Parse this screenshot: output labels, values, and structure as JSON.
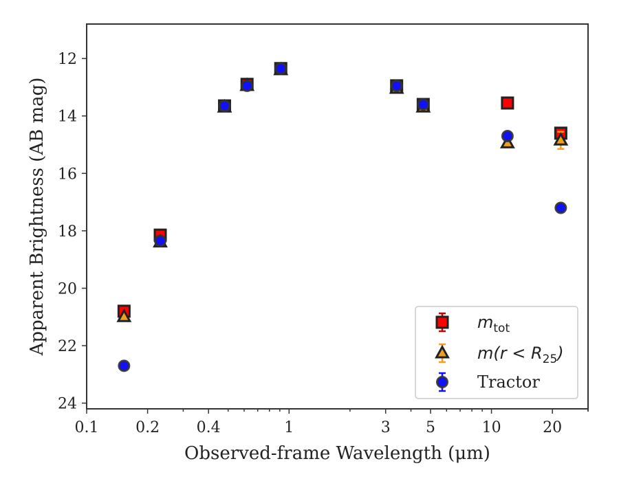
{
  "chart_data": {
    "type": "scatter",
    "xlabel": "Observed-frame Wavelength (μm)",
    "ylabel": "Apparent Brightness (AB mag)",
    "xscale": "log",
    "xlim": [
      0.1,
      30
    ],
    "ylim": [
      24.2,
      10.8
    ],
    "y_inverted": true,
    "x_ticks": [
      {
        "value": 0.1,
        "label": "0.1"
      },
      {
        "value": 0.2,
        "label": "0.2"
      },
      {
        "value": 0.4,
        "label": "0.4"
      },
      {
        "value": 1,
        "label": "1"
      },
      {
        "value": 3,
        "label": "3"
      },
      {
        "value": 5,
        "label": "5"
      },
      {
        "value": 10,
        "label": "10"
      },
      {
        "value": 20,
        "label": "20"
      }
    ],
    "y_ticks": [
      12,
      14,
      16,
      18,
      20,
      22,
      24
    ],
    "legend_position": "lower-right",
    "grid": false,
    "series": [
      {
        "name": "m_tot",
        "marker": "square",
        "color": "#ff0000",
        "edge": "#222222",
        "errorbar_color": "#cc0000",
        "x": [
          0.153,
          0.231,
          0.48,
          0.62,
          0.91,
          3.4,
          4.6,
          12.0,
          22.0
        ],
        "y": [
          20.8,
          18.15,
          13.65,
          12.9,
          12.35,
          12.95,
          13.6,
          13.55,
          14.6
        ]
      },
      {
        "name": "m(r < R25)",
        "marker": "triangle",
        "color": "#f0a020",
        "edge": "#222222",
        "errorbar_color": "#f0a020",
        "x": [
          0.153,
          0.231,
          0.48,
          0.62,
          0.91,
          3.4,
          4.6,
          12.0,
          22.0
        ],
        "y": [
          21.0,
          18.4,
          13.7,
          12.95,
          12.4,
          13.05,
          13.7,
          14.95,
          14.85
        ],
        "yerr": [
          0,
          0,
          0,
          0,
          0,
          0,
          0,
          0,
          0.3
        ]
      },
      {
        "name": "Tractor",
        "marker": "circle",
        "color": "#1010ff",
        "edge": "#333333",
        "errorbar_color": "#1010ff",
        "x": [
          0.153,
          0.231,
          0.48,
          0.62,
          0.91,
          3.4,
          4.6,
          12.0,
          22.0
        ],
        "y": [
          22.7,
          18.35,
          13.65,
          12.95,
          12.35,
          12.95,
          13.6,
          14.7,
          17.2
        ]
      }
    ]
  },
  "legend": {
    "items": [
      {
        "label_main": "m",
        "label_sub": "tot",
        "label_rest": ""
      },
      {
        "label_main": "m(r < R",
        "label_sub": "25",
        "label_rest": ")"
      },
      {
        "label_main": "Tractor",
        "label_sub": "",
        "label_rest": ""
      }
    ]
  }
}
